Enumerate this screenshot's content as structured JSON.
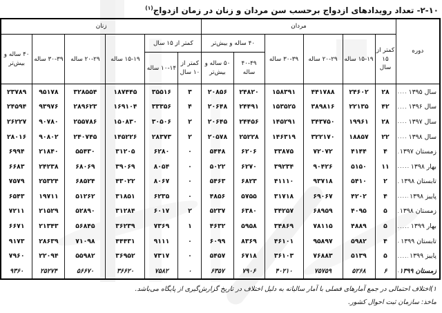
{
  "page": {
    "title_number": "۲-۱۰-",
    "title_text": "تعداد رویدادهای ازدواج برحسب سن مردان و زنان در زمان ازدواج",
    "title_footnote_marker": "(۱)"
  },
  "table": {
    "headers": {
      "period": "دوره",
      "men_group": "مردان",
      "women_group": "زنان",
      "men": {
        "under_15": "کمتر از ۱۵ سال",
        "age_15_19": "۱۵-۱۹ ساله",
        "age_20_29": "۲۰-۲۹ ساله",
        "age_30_39": "۳۰-۳۹ ساله",
        "age_40_plus_group": "۴۰ ساله و بیش‌تر",
        "age_40_49": "۴۰-۴۹ ساله",
        "age_50_plus": "۵۰ ساله و بیش‌تر"
      },
      "women": {
        "under_15_group": "کمتر از ۱۵ سال",
        "under_10": "کمتر از ۱۰ سال",
        "age_10_14": "۱۰-۱۴ ساله",
        "age_15_19": "۱۵-۱۹ ساله",
        "age_20_29": "۲۰-۲۹ ساله",
        "age_30_39": "۳۰-۳۹ ساله",
        "age_40_plus": "۴۰ ساله و بیش‌تر"
      }
    },
    "rows": [
      {
        "period": "سال ۱۳۹۵",
        "bold": false,
        "cells": [
          "۲۸",
          "۲۴۶۰۲",
          "۴۴۱۷۸۸",
          "۱۵۸۳۹۱",
          "۲۴۸۲۰",
          "۲۰۸۵۶",
          "۳",
          "۳۵۵۱۶",
          "۱۸۷۴۴۵",
          "۳۲۸۵۵۴",
          "۹۵۱۷۸",
          "۲۳۷۸۹"
        ]
      },
      {
        "period": "سال ۱۳۹۶",
        "bold": false,
        "cells": [
          "۴۲",
          "۲۲۱۳۵",
          "۳۸۹۸۱۶",
          "۱۵۳۵۲۵",
          "۲۴۴۹۱",
          "۲۰۶۴۸",
          "۴",
          "۳۳۳۵۶",
          "۱۶۹۱۰۴",
          "۲۸۹۶۲۳",
          "۹۳۹۷۶",
          "۲۴۵۹۴"
        ]
      },
      {
        "period": "سال ۱۳۹۷",
        "bold": false,
        "cells": [
          "۲۸",
          "۱۹۹۶۱",
          "۳۴۳۷۵۰",
          "۱۴۵۲۹۱",
          "۲۴۴۵۶",
          "۲۰۶۴۵",
          "۲",
          "۳۰۵۰۶",
          "۱۵۰۸۳۰",
          "۲۵۵۷۸۶",
          "۹۰۷۸۰",
          "۲۶۲۲۷"
        ]
      },
      {
        "period": "سال ۱۳۹۸",
        "bold": false,
        "cells": [
          "۲۲",
          "۱۸۸۵۷",
          "۳۲۲۱۷۰",
          "۱۴۶۳۱۹",
          "۲۵۲۲۸",
          "۲۰۵۷۸",
          "۲",
          "۲۸۳۷۳",
          "۱۴۵۲۲۶",
          "۲۴۰۷۴۵",
          "۹۰۸۰۲",
          "۲۸۰۱۶"
        ]
      },
      {
        "period": "زمستان ۱۳۹۷",
        "bold": false,
        "cells": [
          "۴",
          "۴۱۴۴",
          "۷۲۰۷۲",
          "۳۳۸۷۵",
          "۶۲۰۶",
          "۵۴۴۸",
          "۰",
          "۶۲۸۰",
          "۳۱۲۰۵",
          "۵۵۴۳۰",
          "۲۱۸۴۰",
          "۶۹۹۴"
        ]
      },
      {
        "period": "بهار ۱۳۹۸",
        "bold": false,
        "cells": [
          "۱۱",
          "۵۱۵۰",
          "۹۰۴۲۶",
          "۳۹۲۳۴",
          "۶۲۷۰",
          "۵۰۲۲",
          "۰",
          "۸۰۵۴",
          "۳۹۰۶۹",
          "۶۸۰۶۹",
          "۲۴۲۳۸",
          "۶۶۸۳"
        ]
      },
      {
        "period": "تابستان ۱۳۹۸",
        "bold": false,
        "cells": [
          "۲",
          "۵۴۱۰",
          "۹۳۷۱۸",
          "۴۱۱۱۰",
          "۶۸۲۳",
          "۵۴۶۳",
          "۰",
          "۸۰۶۷",
          "۴۳۰۲۲",
          "۶۸۵۲۴",
          "۲۵۳۲۴",
          "۷۵۷۹"
        ]
      },
      {
        "period": "پاییز ۱۳۹۸",
        "bold": false,
        "cells": [
          "۴",
          "۴۲۰۲",
          "۶۹۰۶۷",
          "۳۱۷۱۸",
          "۵۷۵۵",
          "۴۸۵۶",
          "۰",
          "۶۲۳۵",
          "۳۱۸۵۱",
          "۵۱۲۶۲",
          "۱۹۷۱۱",
          "۶۵۴۳"
        ]
      },
      {
        "period": "زمستان ۱۳۹۸",
        "bold": false,
        "cells": [
          "۵",
          "۴۰۹۵",
          "۶۸۹۵۹",
          "۳۴۲۵۷",
          "۶۳۸۰",
          "۵۲۳۷",
          "۲",
          "۶۰۱۷",
          "۳۱۲۸۴",
          "۵۲۸۹۰",
          "۲۱۵۲۹",
          "۷۲۱۱"
        ]
      },
      {
        "period": "بهار ۱۳۹۹",
        "bold": false,
        "cells": [
          "۵",
          "۴۸۸۹",
          "۷۸۱۱۵",
          "۳۴۸۶۹",
          "۵۹۵۸",
          "۴۶۳۲",
          "۱",
          "۷۳۶۹",
          "۳۶۲۳۹",
          "۵۶۸۴۵",
          "۲۱۳۴۳",
          "۶۶۷۱"
        ]
      },
      {
        "period": "تابستان ۱۳۹۹",
        "bold": false,
        "cells": [
          "۴",
          "۵۹۸۲",
          "۹۵۸۹۷",
          "۴۶۱۰۱",
          "۸۳۶۹",
          "۶۰۹۹",
          "۰",
          "۹۱۱۱",
          "۴۴۴۳۱",
          "۷۱۰۹۸",
          "۲۸۶۳۹",
          "۹۱۷۳"
        ]
      },
      {
        "period": "پاییز ۱۳۹۹",
        "bold": false,
        "cells": [
          "۵",
          "۵۱۳۹",
          "۷۶۸۸۳",
          "۳۶۱۰۳",
          "۶۷۱۸",
          "۵۴۵۷",
          "۰",
          "۷۳۱۷",
          "۳۶۹۵۲",
          "۵۵۹۸۲",
          "۲۲۰۹۴",
          "۷۹۶۰"
        ]
      },
      {
        "period": "زمستان ۱۳۹۹",
        "bold": true,
        "cells": [
          "۶",
          "۵۲۶۸",
          "۷۵۷۵۹",
          "۴۰۲۱۰",
          "۷۹۰۶",
          "۶۳۵۷",
          "۰",
          "۷۵۸۲",
          "۳۶۶۲۰",
          "۵۶۶۷۰",
          "۲۵۲۷۴",
          "۹۳۶۰"
        ]
      }
    ]
  },
  "footnotes": [
    "۱)اختلاف احتمالی در جمع آمارهای فصلی با آمار سالیانه به دلیل اختلاف در تاریخ گزارش‌گیری از پایگاه می‌باشد.",
    "ماخذ: سازمان ثبت احوال کشور."
  ]
}
